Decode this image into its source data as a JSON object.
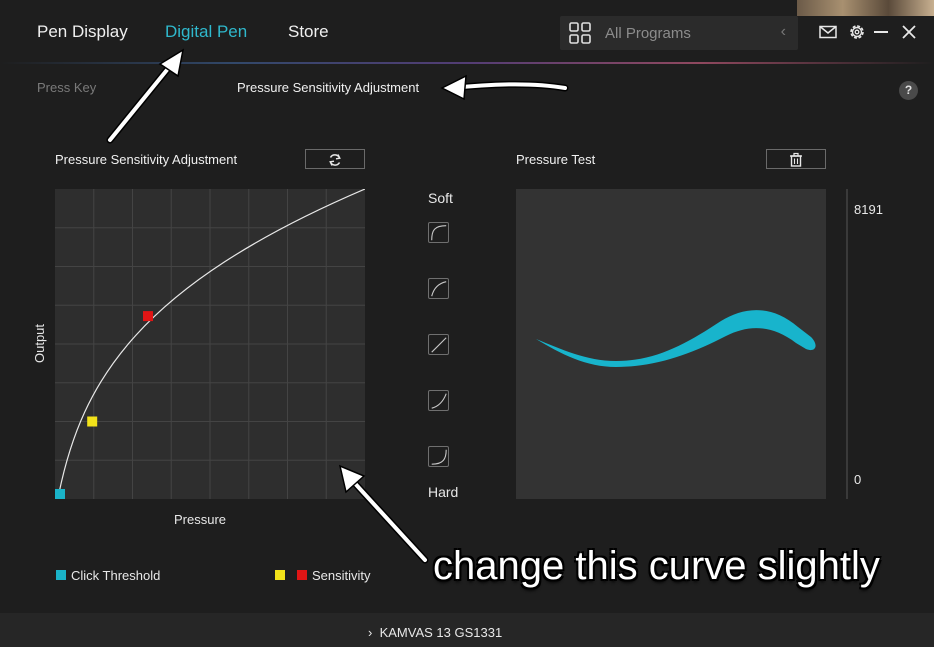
{
  "nav": {
    "tabs": [
      {
        "label": "Pen Display",
        "active": false
      },
      {
        "label": "Digital Pen",
        "active": true
      },
      {
        "label": "Store",
        "active": false
      }
    ],
    "program_select": {
      "value": "All Programs"
    },
    "icons": [
      "grid-icon",
      "mail-icon",
      "gear-icon",
      "minimize-icon",
      "close-icon"
    ]
  },
  "subtabs": [
    {
      "label": "Press Key",
      "active": false
    },
    {
      "label": "Pressure Sensitivity Adjustment",
      "active": true
    }
  ],
  "help_label": "?",
  "curve_panel": {
    "title": "Pressure Sensitivity Adjustment",
    "reset_icon": "refresh-icon",
    "x_label": "Pressure",
    "y_label": "Output",
    "click_threshold": {
      "pressure": 0.0,
      "output": 0.0,
      "color": "#1ab3c8"
    },
    "sensitivity_point_1": {
      "pressure": 0.12,
      "output": 0.25,
      "color": "#f2e21a"
    },
    "sensitivity_point_2": {
      "pressure": 0.3,
      "output": 0.59,
      "color": "#e01515"
    },
    "curve": {
      "start": [
        0.0,
        0.0
      ],
      "end": [
        1.0,
        1.0
      ],
      "color": "#e8e8e8"
    }
  },
  "presets": {
    "top_label": "Soft",
    "bottom_label": "Hard",
    "items": [
      "softest-preset-icon",
      "soft-preset-icon",
      "linear-preset-icon",
      "hard-preset-icon",
      "hardest-preset-icon"
    ]
  },
  "test_panel": {
    "title": "Pressure Test",
    "clear_icon": "trash-icon",
    "scale_max": "8191",
    "scale_min": "0",
    "stroke_color": "#18b4cc"
  },
  "legend": {
    "click_threshold": {
      "label": "Click Threshold",
      "color": "#1ab3c8"
    },
    "sensitivity": {
      "label": "Sensitivity",
      "colors": [
        "#f2e21a",
        "#e01515"
      ]
    }
  },
  "annotation": {
    "text": "change this curve slightly"
  },
  "footer": {
    "device": "KAMVAS 13 GS1331"
  }
}
